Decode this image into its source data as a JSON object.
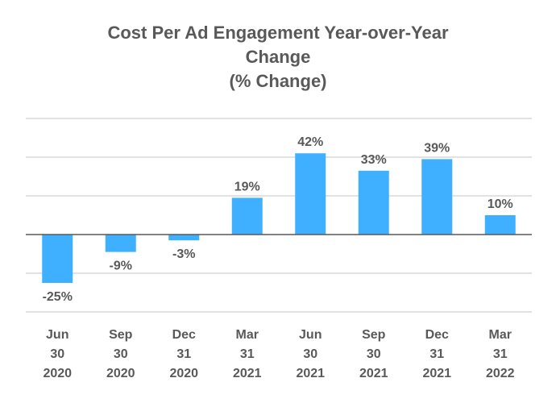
{
  "chart_data": {
    "type": "bar",
    "title_lines": [
      "Cost Per Ad Engagement Year-over-Year",
      "Change",
      "(% Change)"
    ],
    "categories": [
      [
        "Jun",
        "30",
        "2020"
      ],
      [
        "Sep",
        "30",
        "2020"
      ],
      [
        "Dec",
        "31",
        "2020"
      ],
      [
        "Mar",
        "31",
        "2021"
      ],
      [
        "Jun",
        "30",
        "2021"
      ],
      [
        "Sep",
        "30",
        "2021"
      ],
      [
        "Dec",
        "31",
        "2021"
      ],
      [
        "Mar",
        "31",
        "2022"
      ]
    ],
    "values": [
      -25,
      -9,
      -3,
      19,
      42,
      33,
      39,
      10
    ],
    "data_labels": [
      "-25%",
      "-9%",
      "-3%",
      "19%",
      "42%",
      "33%",
      "39%",
      "10%"
    ],
    "ylim": [
      -40,
      60
    ],
    "gridlines": [
      -40,
      -20,
      20,
      40,
      60
    ],
    "grid": true,
    "legend": "none",
    "bar_color": "#3fb0ff",
    "text_color": "#595959"
  }
}
